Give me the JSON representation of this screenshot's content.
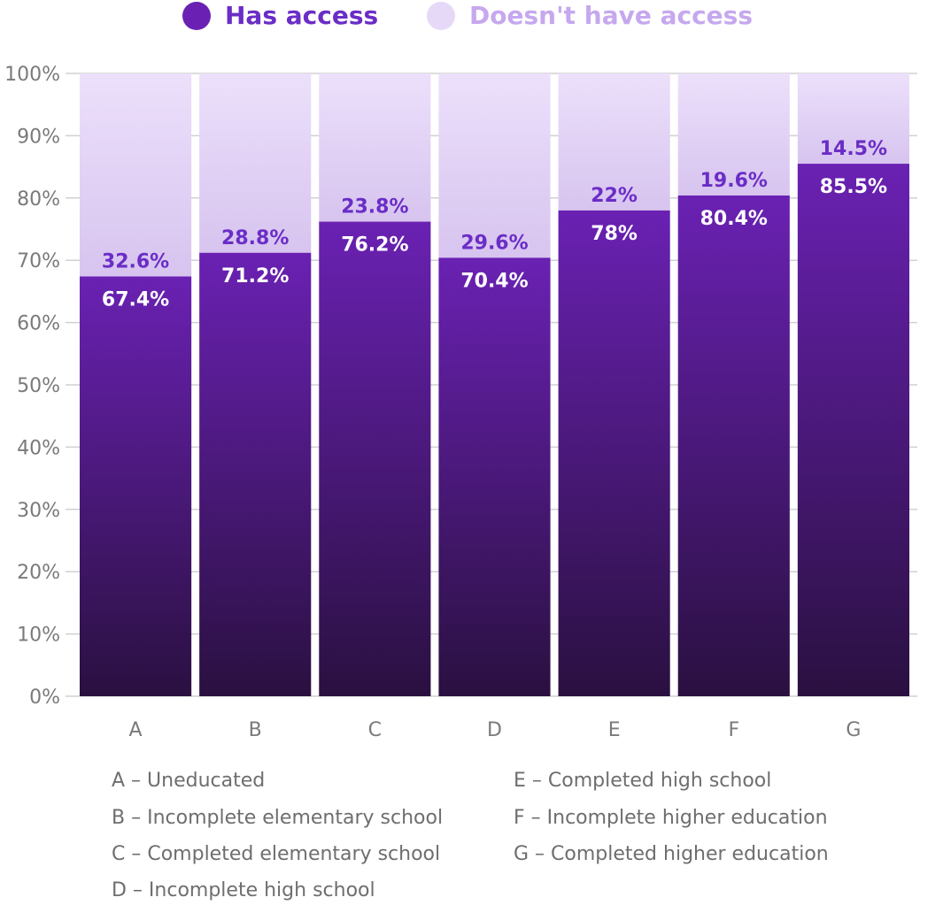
{
  "colors": {
    "has_access_top": "#6a21b3",
    "has_access_bottom": "#2a1040",
    "no_access_top": "#ece0fb",
    "no_access_bottom": "#d7c4ef",
    "has_access_label": "#6b2dc6",
    "no_access_label": "#c6a8ee",
    "outer_label": "#6b2dc6",
    "inner_label": "#ffffff",
    "grid": "#d0d0d0",
    "axis_text": "#7a7a7a"
  },
  "legend": {
    "has_access": "Has access",
    "no_access": "Doesn't have access"
  },
  "chart_data": {
    "type": "bar",
    "stacked": true,
    "categories": [
      "A",
      "B",
      "C",
      "D",
      "E",
      "F",
      "G"
    ],
    "series": [
      {
        "name": "Has access",
        "values": [
          67.4,
          71.2,
          76.2,
          70.4,
          78,
          80.4,
          85.5
        ],
        "labels": [
          "67.4%",
          "71.2%",
          "76.2%",
          "70.4%",
          "78%",
          "80.4%",
          "85.5%"
        ]
      },
      {
        "name": "Doesn't have access",
        "values": [
          32.6,
          28.8,
          23.8,
          29.6,
          22,
          19.6,
          14.5
        ],
        "labels": [
          "32.6%",
          "28.8%",
          "23.8%",
          "29.6%",
          "22%",
          "19.6%",
          "14.5%"
        ]
      }
    ],
    "ylim": [
      0,
      100
    ],
    "yticks": [
      0,
      10,
      20,
      30,
      40,
      50,
      60,
      70,
      80,
      90,
      100
    ],
    "ytick_labels": [
      "0%",
      "10%",
      "20%",
      "30%",
      "40%",
      "50%",
      "60%",
      "70%",
      "80%",
      "90%",
      "100%"
    ],
    "grid": true,
    "legend_position": "top"
  },
  "key": {
    "left": [
      "A – Uneducated",
      "B – Incomplete elementary school",
      "C – Completed elementary school",
      "D – Incomplete high school"
    ],
    "right": [
      "E – Completed high school",
      "F – Incomplete higher education",
      "G – Completed higher education"
    ]
  }
}
